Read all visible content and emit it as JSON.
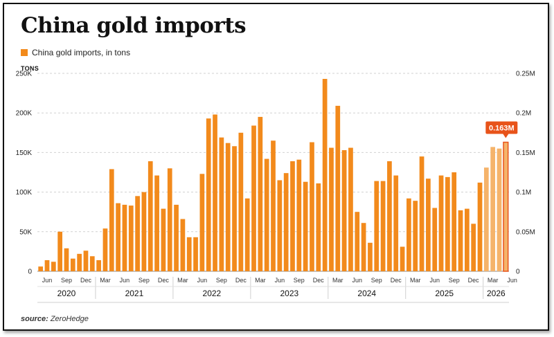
{
  "title": "China gold imports",
  "y_unit_label": "TONS",
  "source_label": "source:",
  "source_value": "ZeroHedge",
  "colors": {
    "bar": "#f28a1c",
    "bar_light": "#f5b36a",
    "callout": "#e8531a",
    "grid": "#d0d0d0"
  },
  "chart_data": {
    "type": "bar",
    "legend": [
      "China gold imports, in tons"
    ],
    "y_left_ticks": [
      "0",
      "50K",
      "100K",
      "150K",
      "200K",
      "250K"
    ],
    "y_right_ticks": [
      "0",
      "0.05M",
      "0.1M",
      "0.15M",
      "0.2M",
      "0.25M"
    ],
    "ylim": [
      0,
      250000
    ],
    "month_labels": [
      "Jun",
      "Sep",
      "Dec",
      "Mar",
      "Jun",
      "Sep",
      "Dec",
      "Mar",
      "Jun",
      "Sep",
      "Dec",
      "Mar",
      "Jun",
      "Sep",
      "Dec",
      "Mar",
      "Jun",
      "Sep",
      "Dec",
      "Mar",
      "Jun",
      "Sep",
      "Dec",
      "Mar",
      "Jun"
    ],
    "years": [
      "2020",
      "2021",
      "2022",
      "2023",
      "2024",
      "2025",
      "2026"
    ],
    "callout": "0.163M",
    "values": [
      6000,
      14000,
      12000,
      50000,
      29000,
      16000,
      22000,
      26000,
      19000,
      14000,
      54000,
      129000,
      86000,
      84000,
      83000,
      95000,
      100000,
      139000,
      121000,
      79000,
      130000,
      84000,
      66000,
      43000,
      43000,
      123000,
      193000,
      198000,
      169000,
      162000,
      158000,
      175000,
      92000,
      184000,
      195000,
      142000,
      165000,
      115000,
      124000,
      139000,
      141000,
      113000,
      163000,
      111000,
      243000,
      156000,
      209000,
      153000,
      156000,
      75000,
      61000,
      36000,
      114000,
      114000,
      139000,
      121000,
      31000,
      92000,
      89000,
      145000,
      117000,
      80000,
      121000,
      119000,
      125000,
      77000,
      79000,
      60000,
      112000,
      131000,
      157000,
      155000,
      163000
    ]
  }
}
